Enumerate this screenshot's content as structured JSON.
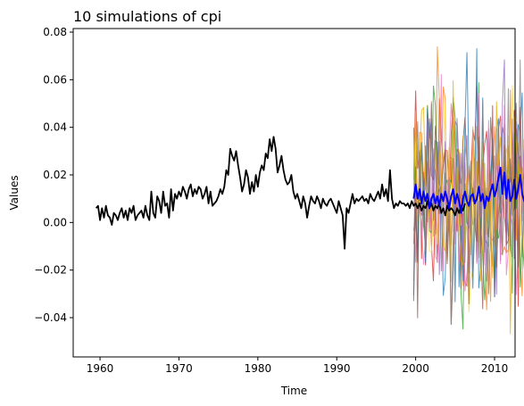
{
  "chart_data": {
    "type": "line",
    "title": "10 simulations of cpi",
    "xlabel": "Time",
    "ylabel": "Values",
    "xlim": [
      1956.6,
      2012.6
    ],
    "ylim": [
      -0.0565,
      0.0815
    ],
    "x_ticks": [
      1960,
      1970,
      1980,
      1990,
      2000,
      2010
    ],
    "x_tick_labels": [
      "1960",
      "1970",
      "1980",
      "1990",
      "2000",
      "2010"
    ],
    "y_ticks": [
      -0.04,
      -0.02,
      0.0,
      0.02,
      0.04,
      0.06,
      0.08
    ],
    "y_tick_labels": [
      "−0.04",
      "−0.02",
      "0.00",
      "0.02",
      "0.04",
      "0.06",
      "0.08"
    ],
    "grid": false,
    "legend": "none",
    "historical": {
      "color": "#000000",
      "x_start": 1959.5,
      "x_step": 0.25,
      "values": [
        0.006,
        0.007,
        0.001,
        0.006,
        0.002,
        0.007,
        0.003,
        0.002,
        -0.001,
        0.004,
        0.003,
        0.001,
        0.004,
        0.006,
        0.002,
        0.005,
        0.001,
        0.006,
        0.004,
        0.007,
        0.001,
        0.003,
        0.004,
        0.005,
        0.002,
        0.007,
        0.003,
        0.001,
        0.013,
        0.004,
        0.002,
        0.011,
        0.009,
        0.004,
        0.013,
        0.007,
        0.008,
        0.002,
        0.014,
        0.005,
        0.012,
        0.01,
        0.013,
        0.011,
        0.015,
        0.013,
        0.01,
        0.014,
        0.016,
        0.011,
        0.014,
        0.012,
        0.015,
        0.014,
        0.01,
        0.012,
        0.015,
        0.008,
        0.013,
        0.007,
        0.008,
        0.009,
        0.011,
        0.014,
        0.012,
        0.015,
        0.022,
        0.02,
        0.031,
        0.028,
        0.026,
        0.03,
        0.024,
        0.019,
        0.013,
        0.016,
        0.022,
        0.019,
        0.012,
        0.017,
        0.013,
        0.02,
        0.015,
        0.021,
        0.024,
        0.022,
        0.029,
        0.027,
        0.035,
        0.03,
        0.036,
        0.031,
        0.021,
        0.024,
        0.028,
        0.022,
        0.018,
        0.016,
        0.017,
        0.02,
        0.013,
        0.01,
        0.012,
        0.009,
        0.006,
        0.011,
        0.008,
        0.002,
        0.007,
        0.011,
        0.009,
        0.008,
        0.011,
        0.009,
        0.006,
        0.01,
        0.008,
        0.007,
        0.009,
        0.01,
        0.008,
        0.006,
        0.004,
        0.009,
        0.006,
        0.003,
        -0.011,
        0.006,
        0.004,
        0.008,
        0.012,
        0.008,
        0.01,
        0.009,
        0.01,
        0.011,
        0.009,
        0.01,
        0.008,
        0.012,
        0.01,
        0.009,
        0.011,
        0.013,
        0.01,
        0.016,
        0.011,
        0.014,
        0.009,
        0.022,
        0.01,
        0.006,
        0.008,
        0.007,
        0.009,
        0.008,
        0.008,
        0.007,
        0.008,
        0.006,
        0.009,
        0.007,
        0.008,
        0.006,
        0.008,
        0.005,
        0.007,
        0.006,
        0.009,
        0.006,
        0.008,
        0.005,
        0.007,
        0.006,
        0.008,
        0.004,
        0.006,
        0.003,
        0.007,
        0.005,
        0.006,
        0.005,
        0.003,
        0.006,
        0.004,
        0.007,
        0.005,
        0.008
      ]
    },
    "simulations": {
      "x_start": 1999.75,
      "x_step": 0.25,
      "count": 10,
      "colors": [
        "#d62728",
        "#ff7f0e",
        "#ffd92f",
        "#2ca02c",
        "#1f77b4",
        "#9467bd",
        "#e377c2",
        "#8c564b",
        "#7f7f7f",
        "#e6ab02"
      ]
    },
    "simulation_mean": {
      "color": "#0000ff",
      "values": [
        0.01,
        0.016,
        0.01,
        0.014,
        0.008,
        0.013,
        0.009,
        0.012,
        0.006,
        0.01,
        0.012,
        0.008,
        0.011,
        0.007,
        0.012,
        0.009,
        0.013,
        0.01,
        0.006,
        0.011,
        0.014,
        0.008,
        0.012,
        0.009,
        0.004,
        0.01,
        0.013,
        0.009,
        0.007,
        0.011,
        0.012,
        0.008,
        0.01,
        0.015,
        0.009,
        0.012,
        0.006,
        0.011,
        0.009,
        0.013,
        0.016,
        0.011,
        0.014,
        0.019,
        0.023,
        0.012,
        0.021,
        0.01,
        0.018,
        0.009,
        0.011,
        0.018,
        0.01,
        0.014,
        0.02,
        0.012,
        0.009,
        0.015,
        0.011,
        0.017
      ]
    }
  }
}
